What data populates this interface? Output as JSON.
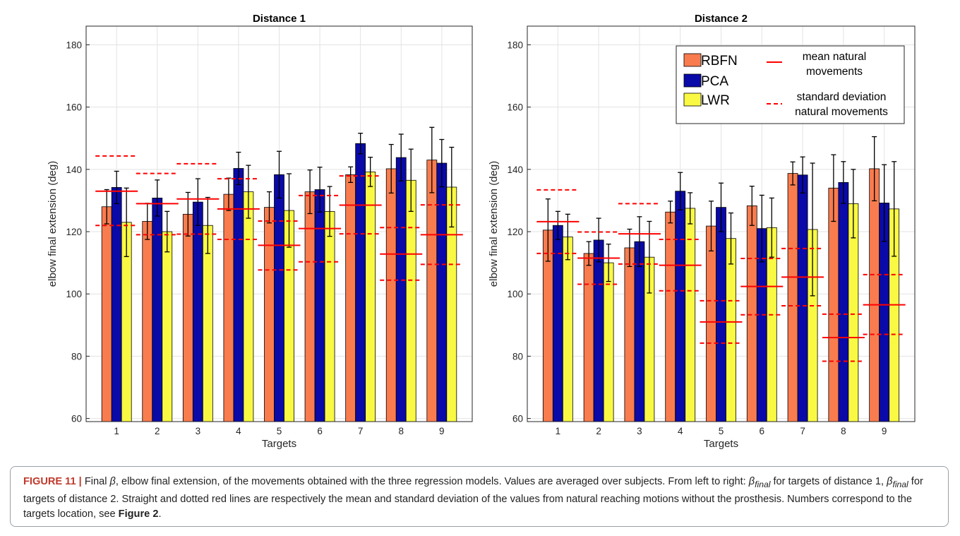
{
  "chart_data": [
    {
      "type": "bar",
      "title": "Distance 1",
      "xlabel": "Targets",
      "ylabel": "elbow final extension (deg)",
      "ylim": [
        59,
        186
      ],
      "yticks": [
        "60",
        "80",
        "100",
        "120",
        "140",
        "160",
        "180"
      ],
      "categories": [
        "1",
        "2",
        "3",
        "4",
        "5",
        "6",
        "7",
        "8",
        "9"
      ],
      "grid": true,
      "series": [
        {
          "name": "RBFN",
          "color": "#f97c4e",
          "values": [
            128.0,
            123.3,
            125.6,
            132.0,
            127.8,
            132.8,
            138.3,
            140.2,
            143.0
          ],
          "errors": [
            5.5,
            5.8,
            7.0,
            5.2,
            5.0,
            7.0,
            2.5,
            7.8,
            10.5
          ]
        },
        {
          "name": "PCA",
          "color": "#0a0aa8",
          "values": [
            134.2,
            130.8,
            129.5,
            140.3,
            138.3,
            133.5,
            148.3,
            143.8,
            142.0
          ],
          "errors": [
            5.2,
            5.8,
            7.5,
            5.2,
            7.5,
            7.2,
            3.3,
            7.5,
            7.6
          ]
        },
        {
          "name": "LWR",
          "color": "#f9f944",
          "values": [
            123.0,
            120.0,
            122.0,
            132.8,
            126.8,
            126.5,
            139.2,
            136.5,
            134.3
          ],
          "errors": [
            11.0,
            6.5,
            9.0,
            8.5,
            11.8,
            8.0,
            4.7,
            10.0,
            12.8
          ]
        }
      ],
      "natural_mean": [
        133.0,
        129.0,
        130.5,
        127.3,
        115.6,
        121.0,
        128.5,
        112.8,
        119.0
      ],
      "natural_std_upper": [
        144.3,
        138.7,
        141.8,
        137.0,
        123.4,
        131.6,
        137.9,
        121.3,
        128.6
      ],
      "natural_std_lower": [
        122.0,
        119.0,
        119.2,
        117.5,
        107.7,
        110.3,
        119.3,
        104.4,
        109.5
      ]
    },
    {
      "type": "bar",
      "title": "Distance 2",
      "xlabel": "Targets",
      "ylabel": "elbow final extension (deg)",
      "ylim": [
        59,
        186
      ],
      "yticks": [
        "60",
        "80",
        "100",
        "120",
        "140",
        "160",
        "180"
      ],
      "categories": [
        "1",
        "2",
        "3",
        "4",
        "5",
        "6",
        "7",
        "8",
        "9"
      ],
      "grid": true,
      "legend_position": "top-right",
      "series": [
        {
          "name": "RBFN",
          "color": "#f97c4e",
          "values": [
            120.5,
            113.0,
            114.8,
            126.3,
            121.8,
            128.3,
            138.7,
            134.0,
            140.2
          ],
          "errors": [
            10.0,
            3.8,
            6.0,
            3.5,
            8.0,
            6.3,
            3.7,
            10.7,
            10.3
          ]
        },
        {
          "name": "PCA",
          "color": "#0a0aa8",
          "values": [
            122.0,
            117.3,
            116.8,
            133.0,
            127.8,
            121.0,
            138.2,
            135.8,
            129.2
          ],
          "errors": [
            4.5,
            7.0,
            8.0,
            6.0,
            7.8,
            10.7,
            5.8,
            6.7,
            12.3
          ]
        },
        {
          "name": "LWR",
          "color": "#f9f944",
          "values": [
            118.3,
            110.0,
            111.8,
            127.5,
            117.8,
            121.3,
            120.7,
            129.0,
            127.3
          ],
          "errors": [
            7.3,
            6.0,
            11.5,
            5.0,
            8.2,
            9.5,
            21.3,
            11.0,
            15.2
          ]
        }
      ],
      "natural_mean": [
        123.2,
        111.5,
        119.3,
        109.2,
        91.0,
        102.4,
        105.4,
        86.0,
        96.5
      ],
      "natural_std_upper": [
        133.4,
        119.9,
        129.0,
        117.5,
        97.8,
        111.4,
        114.6,
        93.5,
        106.2
      ],
      "natural_std_lower": [
        113.0,
        103.1,
        109.6,
        101.0,
        84.2,
        93.3,
        96.2,
        78.4,
        87.0
      ]
    }
  ],
  "legend": {
    "mean_label_line1": "mean natural",
    "mean_label_line2": "movements",
    "std_label_line1": "standard deviation",
    "std_label_line2": "natural movements",
    "mean_color": "#ff0000",
    "std_color": "#ff0000"
  },
  "caption": {
    "label": "FIGURE 11 |",
    "part1": " Final ",
    "beta": "β",
    "part2": ", elbow final extension, of the movements obtained with the three regression models. Values are averaged over subjects. From left to right: ",
    "final": "final",
    "part3": " for targets of distance 1, ",
    "part4": " for targets of distance 2. Straight and dotted red lines are respectively the mean and standard deviation of the values from natural reaching motions without the prosthesis. Numbers correspond to the targets location, see ",
    "ref": "Figure 2",
    "end": "."
  }
}
